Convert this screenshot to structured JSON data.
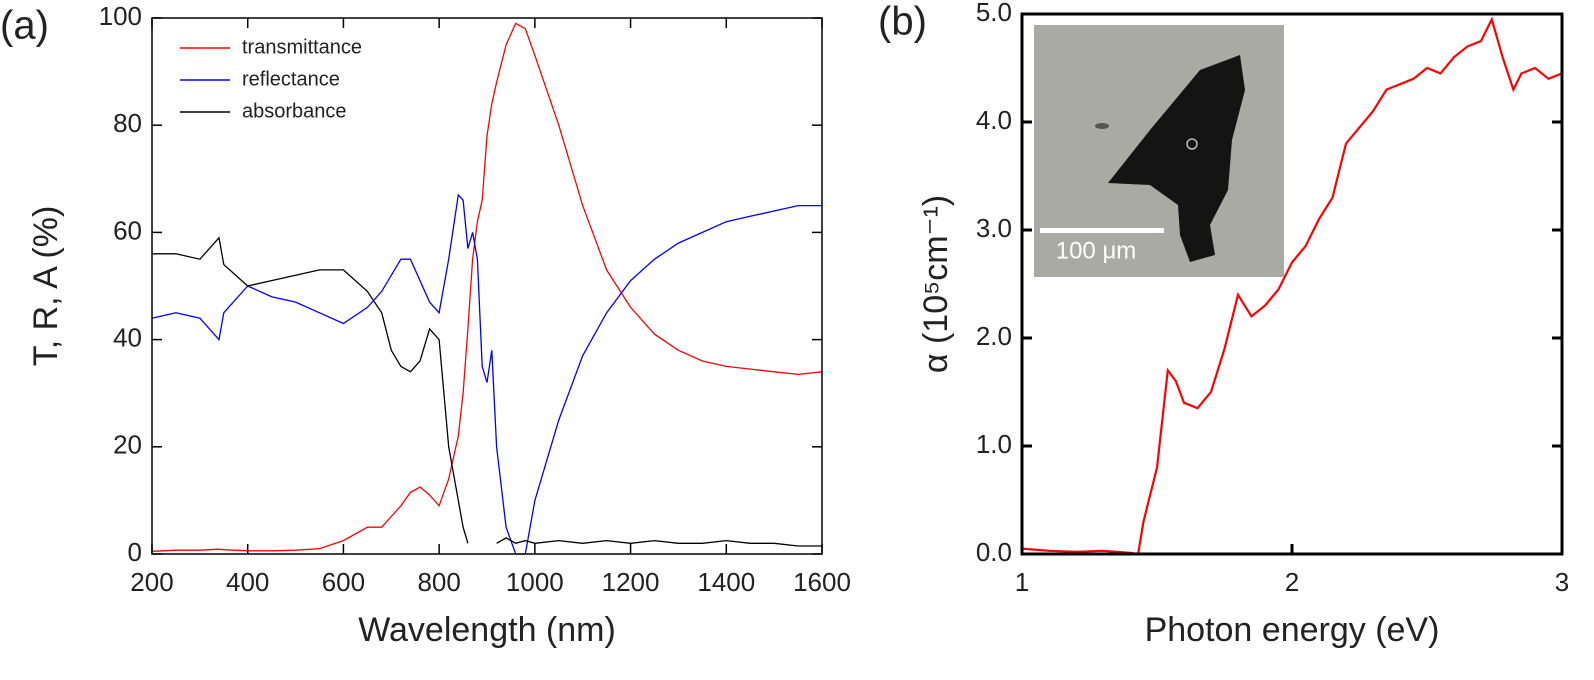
{
  "chart_data": [
    {
      "type": "line",
      "panel_label": "(a)",
      "x_label": "Wavelength (nm)",
      "y_label": "T, R, A (%)",
      "x": [
        200,
        250,
        300,
        340,
        350,
        400,
        450,
        500,
        550,
        600,
        650,
        680,
        700,
        720,
        740,
        760,
        780,
        800,
        820,
        840,
        850,
        860,
        870,
        880,
        890,
        900,
        910,
        920,
        940,
        960,
        980,
        1000,
        1050,
        1100,
        1150,
        1200,
        1250,
        1300,
        1350,
        1400,
        1450,
        1500,
        1550,
        1600
      ],
      "series": [
        {
          "name": "transmittance",
          "color": "#ff0000",
          "values": [
            0.5,
            0.7,
            0.7,
            0.9,
            0.8,
            0.6,
            0.6,
            0.7,
            1,
            2.5,
            5,
            5,
            7,
            9,
            11.5,
            12.5,
            11,
            9,
            14,
            22,
            30,
            42,
            55,
            62,
            66,
            78,
            84,
            88,
            95,
            99,
            98,
            93,
            80,
            65,
            53,
            46,
            41,
            38,
            36,
            35,
            34.5,
            34,
            33.5,
            34
          ]
        },
        {
          "name": "reflectance",
          "color": "#0000ff",
          "values": [
            44,
            45,
            44,
            40,
            45,
            50,
            48,
            47,
            45,
            43,
            46,
            49,
            52,
            55,
            55,
            51,
            47,
            45,
            55,
            67,
            66,
            57,
            60,
            55,
            35,
            32,
            38,
            20,
            5,
            0,
            0,
            10,
            25,
            37,
            45,
            51,
            55,
            58,
            60,
            62,
            63,
            64,
            65,
            65
          ]
        },
        {
          "name": "absorbance",
          "color": "#000000",
          "values": [
            56,
            56,
            55,
            59,
            54,
            50,
            51,
            52,
            53,
            53,
            49,
            45,
            38,
            35,
            34,
            36,
            42,
            40,
            20,
            10,
            5,
            2,
            null,
            null,
            null,
            null,
            null,
            2,
            3,
            2,
            2.5,
            2,
            2.5,
            2,
            2.5,
            2,
            2.5,
            2,
            2,
            2.5,
            2,
            2,
            1.5,
            1.5
          ]
        }
      ],
      "xlim": [
        200,
        1600
      ],
      "xticks": [
        200,
        400,
        600,
        800,
        1000,
        1200,
        1400,
        1600
      ],
      "ylim": [
        0,
        100
      ],
      "yticks": [
        0,
        20,
        40,
        60,
        80,
        100
      ],
      "legend": "upper left"
    },
    {
      "type": "line",
      "panel_label": "(b)",
      "x_label": "Photon energy (eV)",
      "y_label": "α (10⁵cm⁻¹)",
      "inset_text": "100 μm",
      "x": [
        1.0,
        1.1,
        1.2,
        1.3,
        1.35,
        1.4,
        1.43,
        1.45,
        1.5,
        1.54,
        1.57,
        1.6,
        1.65,
        1.7,
        1.75,
        1.8,
        1.85,
        1.9,
        1.95,
        2.0,
        2.05,
        2.1,
        2.15,
        2.2,
        2.25,
        2.3,
        2.35,
        2.4,
        2.45,
        2.5,
        2.55,
        2.6,
        2.65,
        2.7,
        2.74,
        2.78,
        2.82,
        2.85,
        2.9,
        2.95,
        3.0
      ],
      "values": [
        0.05,
        0.03,
        0.02,
        0.03,
        0.02,
        0.01,
        0.0,
        0.3,
        0.8,
        1.7,
        1.6,
        1.4,
        1.35,
        1.5,
        1.9,
        2.4,
        2.2,
        2.3,
        2.45,
        2.7,
        2.85,
        3.1,
        3.3,
        3.8,
        3.95,
        4.1,
        4.3,
        4.35,
        4.4,
        4.5,
        4.45,
        4.6,
        4.7,
        4.75,
        4.95,
        4.6,
        4.3,
        4.45,
        4.5,
        4.4,
        4.45
      ],
      "color": "#ff0000",
      "xlim": [
        1,
        3
      ],
      "xticks": [
        1,
        2,
        3
      ],
      "ylim": [
        0,
        5
      ],
      "yticks": [
        {
          "value": 0,
          "label": "0.0"
        },
        {
          "value": 1,
          "label": "1.0"
        },
        {
          "value": 2,
          "label": "2.0"
        },
        {
          "value": 3,
          "label": "3.0"
        },
        {
          "value": 4,
          "label": "4.0"
        },
        {
          "value": 5,
          "label": "5.0"
        }
      ]
    }
  ]
}
